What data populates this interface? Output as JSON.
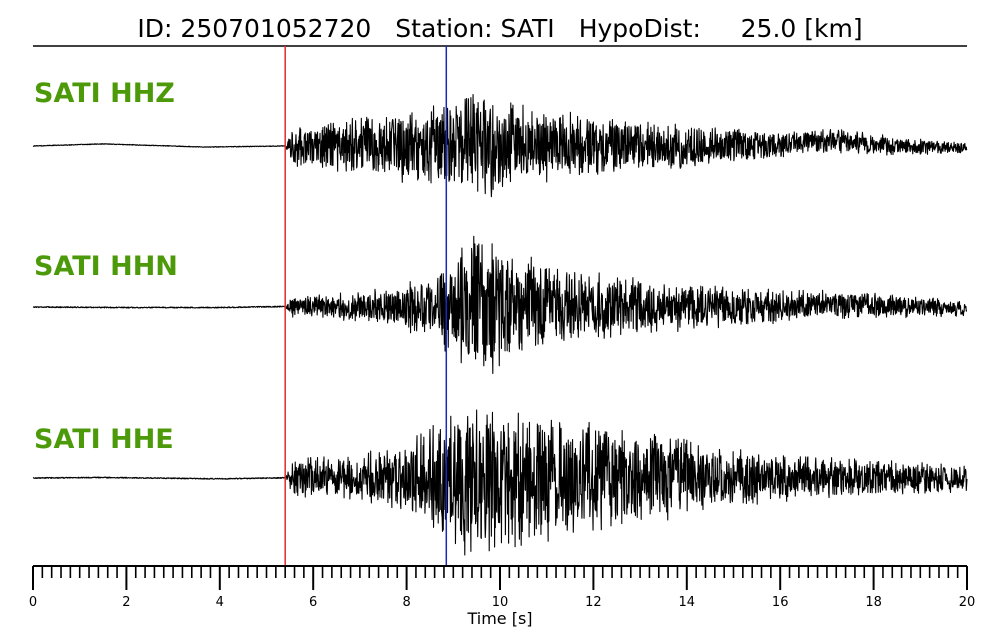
{
  "title": {
    "id_text": "ID: 250701052720",
    "station_text": "Station: SATI",
    "hypodist_text": "HypoDist:     25.0 [km]"
  },
  "chart_data": {
    "type": "line",
    "title": "ID: 250701052720   Station: SATI   HypoDist:     25.0 [km]",
    "xlabel": "Time [s]",
    "ylabel": "",
    "xlim": [
      0,
      20
    ],
    "x_ticks": [
      0,
      2,
      4,
      6,
      8,
      10,
      12,
      14,
      16,
      18,
      20
    ],
    "x_tick_labels": [
      "0",
      "2",
      "4",
      "6",
      "8",
      "10",
      "12",
      "14",
      "16",
      "18",
      "20"
    ],
    "minor_tick_step": 0.2,
    "grid": false,
    "label_color": "#4c9a0a",
    "p_pick_time": 5.4,
    "p_pick_color": "#e8262a",
    "s_pick_time": 8.85,
    "s_pick_color": "#1a2ab8",
    "trace_color": "#000000",
    "series": [
      {
        "name": "SATI HHZ",
        "pre_event_swell": [
          [
            0,
            0.0
          ],
          [
            1.5,
            0.3
          ],
          [
            3.7,
            -0.15
          ],
          [
            5.4,
            0.0
          ]
        ],
        "envelope": [
          [
            5.4,
            0.35
          ],
          [
            7.0,
            0.55
          ],
          [
            8.5,
            0.75
          ],
          [
            9.5,
            1.0
          ],
          [
            10.5,
            0.75
          ],
          [
            12.0,
            0.55
          ],
          [
            14.0,
            0.4
          ],
          [
            16.0,
            0.25
          ],
          [
            18.0,
            0.2
          ],
          [
            20.0,
            0.1
          ]
        ],
        "late_swell": [
          [
            15.5,
            0.0
          ],
          [
            17.0,
            0.55
          ],
          [
            18.5,
            0.0
          ],
          [
            20.0,
            -0.2
          ]
        ]
      },
      {
        "name": "SATI HHN",
        "pre_event_swell": [
          [
            0,
            0.0
          ],
          [
            2.0,
            -0.05
          ],
          [
            4.0,
            -0.05
          ],
          [
            5.4,
            0.05
          ]
        ],
        "envelope": [
          [
            5.4,
            0.12
          ],
          [
            7.0,
            0.18
          ],
          [
            8.5,
            0.35
          ],
          [
            9.6,
            1.0
          ],
          [
            10.5,
            0.6
          ],
          [
            12.0,
            0.4
          ],
          [
            14.0,
            0.28
          ],
          [
            16.0,
            0.2
          ],
          [
            18.0,
            0.15
          ],
          [
            20.0,
            0.1
          ]
        ],
        "late_swell": [
          [
            15.5,
            0.0
          ],
          [
            17.5,
            0.15
          ],
          [
            20.0,
            -0.1
          ]
        ]
      },
      {
        "name": "SATI HHE",
        "pre_event_swell": [
          [
            0,
            0.0
          ],
          [
            1.5,
            0.05
          ],
          [
            4.0,
            -0.08
          ],
          [
            5.4,
            0.02
          ]
        ],
        "envelope": [
          [
            5.4,
            0.25
          ],
          [
            7.0,
            0.3
          ],
          [
            8.0,
            0.45
          ],
          [
            9.2,
            1.0
          ],
          [
            10.5,
            0.9
          ],
          [
            12.0,
            0.7
          ],
          [
            14.0,
            0.5
          ],
          [
            15.0,
            0.35
          ],
          [
            17.0,
            0.25
          ],
          [
            20.0,
            0.18
          ]
        ],
        "late_swell": [
          [
            13.0,
            0.0
          ],
          [
            14.5,
            0.15
          ],
          [
            16.0,
            0.0
          ]
        ]
      }
    ]
  }
}
